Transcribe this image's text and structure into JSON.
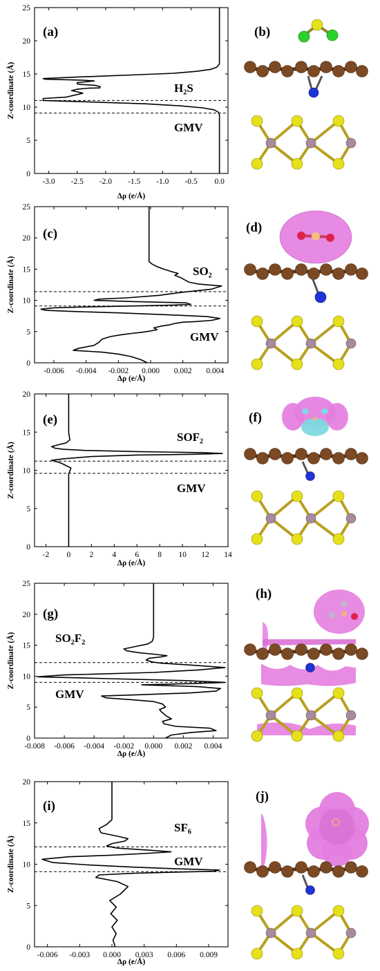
{
  "colors": {
    "curve": "#000000",
    "axis": "#000000",
    "dashed": "#000000",
    "carbon": "#7b4a25",
    "nitrogen": "#1f33d6",
    "sulfur": "#e6e01a",
    "molybdenum": "#a88a9e",
    "chlorine": "#2bd12b",
    "oxygen": "#e0224a",
    "fluorine": "#c4b2cf",
    "isosurface": "#e47ee0",
    "isosurface_neg": "#7fd9e0"
  },
  "structures": [
    {
      "letter": "(b)",
      "molecule": "H2S-like (S with two green atoms)",
      "isosurface": "none"
    },
    {
      "letter": "(d)",
      "molecule": "SO2",
      "isosurface": "ellipsoid-above"
    },
    {
      "letter": "(f)",
      "molecule": "SOF2",
      "isosurface": "lobes-with-cyan"
    },
    {
      "letter": "(h)",
      "molecule": "SO2F2",
      "isosurface": "layers"
    },
    {
      "letter": "(j)",
      "molecule": "SF6",
      "isosurface": "octahedral-blob"
    }
  ],
  "chart_data": [
    {
      "type": "line",
      "letter": "(a)",
      "annotation_molecule": "H₂S",
      "annotation_substrate": "GMV",
      "xlabel": "Δρ (e/Å)",
      "ylabel": "Z-coordinate (Å)",
      "xlim": [
        -3.25,
        0.15
      ],
      "ylim": [
        0,
        25
      ],
      "xticks": [
        "-3.0",
        "-2.5",
        "-2.0",
        "-1.5",
        "-1.0",
        "-0.5",
        "0.0"
      ],
      "xtick_values": [
        -3.0,
        -2.5,
        -2.0,
        -1.5,
        -1.0,
        -0.5,
        0.0
      ],
      "yticks": [
        0,
        5,
        10,
        15,
        20,
        25
      ],
      "dashed_lines_z": [
        9.1,
        11.0
      ],
      "series": [
        {
          "x": [
            0,
            0,
            0,
            -0.01,
            -0.03,
            -0.1,
            -0.3,
            -0.7,
            -1.3,
            -2.0,
            -2.7,
            -3.1,
            -3.1,
            -2.7,
            -2.6,
            -2.5,
            -2.4,
            -2.5,
            -2.6,
            -2.5,
            -2.3,
            -2.1,
            -2.1,
            -2.2,
            -2.4,
            -2.5,
            -2.5,
            -2.3,
            -2.2,
            -2.4,
            -2.6,
            -2.8,
            -3.05,
            -3.1,
            -2.6,
            -2.0,
            -1.4,
            -0.8,
            -0.4,
            -0.15,
            -0.05,
            0,
            0,
            0
          ],
          "y": [
            0,
            5,
            8.8,
            9.1,
            9.3,
            9.6,
            9.9,
            10.2,
            10.5,
            10.7,
            10.9,
            11.0,
            11.3,
            11.5,
            11.7,
            11.9,
            12.1,
            12.3,
            12.5,
            12.7,
            12.85,
            12.9,
            13.1,
            13.3,
            13.4,
            13.5,
            13.7,
            13.85,
            13.95,
            14.05,
            14.1,
            14.15,
            14.2,
            14.3,
            14.5,
            14.7,
            14.9,
            15.1,
            15.4,
            15.7,
            16.0,
            16.5,
            20,
            25
          ]
        }
      ]
    },
    {
      "type": "line",
      "letter": "(c)",
      "annotation_molecule": "SO₂",
      "annotation_substrate": "GMV",
      "xlabel": "Δρ (e/Å)",
      "ylabel": "Z-coordinate (Å)",
      "xlim": [
        -0.0072,
        0.0048
      ],
      "ylim": [
        0,
        25
      ],
      "xticks": [
        "-0.006",
        "-0.004",
        "-0.002",
        "0.000",
        "0.002",
        "0.004"
      ],
      "xtick_values": [
        -0.006,
        -0.004,
        -0.002,
        0.0,
        0.002,
        0.004
      ],
      "yticks": [
        0,
        5,
        10,
        15,
        20,
        25
      ],
      "dashed_lines_z": [
        9.1,
        11.4
      ],
      "series": [
        {
          "x": [
            -0.0002,
            -0.0006,
            -0.0012,
            -0.002,
            -0.003,
            -0.0042,
            -0.0048,
            -0.0045,
            -0.0035,
            -0.0032,
            -0.003,
            -0.0025,
            -0.0018,
            -0.0012,
            -0.0005,
            0.0,
            0.0004,
            0.0002,
            0.0007,
            0.0012,
            0.0015,
            0.002,
            0.0028,
            0.0038,
            0.0043,
            0.0035,
            0.001,
            -0.002,
            -0.0045,
            -0.0065,
            -0.0068,
            -0.006,
            -0.004,
            -0.001,
            0.0015,
            0.0025,
            0.0022,
            -0.001,
            -0.0035,
            -0.0032,
            -0.0015,
            0.0005,
            0.002,
            0.0038,
            0.0044,
            0.003,
            0.0024,
            0.0021,
            0.0019,
            0.0015,
            0.0017,
            0.0013,
            0.0008,
            0.0004,
            0.0001,
            -0.0001,
            -0.0001,
            -0.0001,
            -0.0001
          ],
          "y": [
            0,
            0.5,
            1.0,
            1.4,
            1.7,
            1.9,
            2.0,
            2.3,
            2.8,
            3.3,
            3.8,
            4.2,
            4.5,
            4.7,
            4.9,
            5.1,
            5.3,
            5.6,
            5.9,
            6.1,
            6.3,
            6.5,
            6.6,
            6.8,
            7.1,
            7.4,
            7.7,
            8.0,
            8.2,
            8.4,
            8.6,
            8.8,
            8.95,
            9.1,
            9.25,
            9.35,
            9.6,
            9.8,
            10.0,
            10.2,
            10.4,
            10.8,
            11.3,
            11.8,
            12.3,
            12.6,
            12.9,
            13.3,
            13.6,
            14.0,
            14.3,
            14.6,
            15.0,
            15.4,
            15.8,
            16.2,
            17.0,
            20,
            25
          ]
        }
      ]
    },
    {
      "type": "line",
      "letter": "(e)",
      "annotation_molecule": "SOF₂",
      "annotation_substrate": "GMV",
      "xlabel": "Δρ (e/Å)",
      "ylabel": "Z-coordinate (Å)",
      "xlim": [
        -3.0,
        14.0
      ],
      "ylim": [
        0,
        20
      ],
      "xticks": [
        "-2",
        "0",
        "2",
        "4",
        "6",
        "8",
        "10",
        "12",
        "14"
      ],
      "xtick_values": [
        -2,
        0,
        2,
        4,
        6,
        8,
        10,
        12,
        14
      ],
      "yticks": [
        0,
        5,
        10,
        15,
        20
      ],
      "dashed_lines_z": [
        9.6,
        11.2
      ],
      "series": [
        {
          "x": [
            0,
            0,
            0,
            0.1,
            0.2,
            -0.2,
            -0.6,
            -1.0,
            -1.5,
            -0.5,
            2.0,
            6.0,
            11.0,
            13.5,
            12.0,
            6.0,
            1.5,
            -0.5,
            -1.2,
            -1.5,
            -1.0,
            -0.2,
            0.1,
            0.05,
            0,
            0
          ],
          "y": [
            0,
            5,
            9.5,
            9.9,
            10.3,
            10.6,
            10.9,
            11.1,
            11.3,
            11.5,
            11.8,
            12.0,
            12.1,
            12.2,
            12.3,
            12.45,
            12.6,
            12.75,
            12.9,
            13.1,
            13.3,
            13.6,
            14.0,
            14.5,
            15.0,
            20
          ]
        }
      ]
    },
    {
      "type": "line",
      "letter": "(g)",
      "annotation_molecule": "SO₂F₂",
      "annotation_substrate": "GMV",
      "xlabel": "Δρ (e/Å)",
      "ylabel": "Z-coordinate (Å)",
      "xlim": [
        -0.008,
        0.005
      ],
      "ylim": [
        0,
        25
      ],
      "xticks": [
        "-0.008",
        "-0.006",
        "-0.004",
        "-0.002",
        "0.000",
        "0.002",
        "0.004"
      ],
      "xtick_values": [
        -0.008,
        -0.006,
        -0.004,
        -0.002,
        0.0,
        0.002,
        0.004
      ],
      "yticks": [
        0,
        5,
        10,
        15,
        20,
        25
      ],
      "dashed_lines_z": [
        9.0,
        12.2
      ],
      "series": [
        {
          "x": [
            0.0008,
            0.0012,
            0.0025,
            0.0042,
            0.0038,
            0.0015,
            0.0007,
            0.0006,
            0.0012,
            0.0009,
            0.0007,
            0.0005,
            0.0004,
            0.0008,
            0.0006,
            0.0,
            -0.0015,
            -0.0032,
            -0.0035,
            -0.001,
            0.0025,
            0.0042,
            0.0045,
            0.003,
            0.0005,
            -0.0008,
            0.0025,
            0.0048,
            0.002,
            -0.003,
            -0.0078,
            -0.006,
            0.0,
            0.003,
            0.0048,
            0.0025,
            0.0005,
            -0.0001,
            -0.0005,
            -0.0003,
            0.0005,
            0.0009,
            0.0002,
            -0.001,
            -0.0018,
            -0.002,
            -0.0012,
            -0.0004,
            -0.0001,
            0.0,
            0.0,
            0.0
          ],
          "y": [
            0,
            0.5,
            0.9,
            1.2,
            1.6,
            1.9,
            2.3,
            2.7,
            3.1,
            3.5,
            3.9,
            4.3,
            4.6,
            5.0,
            5.5,
            5.9,
            6.2,
            6.5,
            6.8,
            7.0,
            7.3,
            7.6,
            8.0,
            8.3,
            8.5,
            8.6,
            8.8,
            9.0,
            9.3,
            9.6,
            9.9,
            10.2,
            10.6,
            11.0,
            11.4,
            11.8,
            12.1,
            12.3,
            12.6,
            12.9,
            13.1,
            13.3,
            13.5,
            13.8,
            14.1,
            14.4,
            14.8,
            15.2,
            15.6,
            16.3,
            20,
            25
          ]
        }
      ]
    },
    {
      "type": "line",
      "letter": "(i)",
      "annotation_molecule": "SF₆",
      "annotation_substrate": "GMV",
      "xlabel": "Δρ (e/Å)",
      "ylabel": "Z-coordinate (Å)",
      "xlim": [
        -0.0072,
        0.0108
      ],
      "ylim": [
        0,
        20
      ],
      "xticks": [
        "-0.006",
        "-0.003",
        "0.000",
        "0.003",
        "0.006",
        "0.009"
      ],
      "xtick_values": [
        -0.006,
        -0.003,
        0.0,
        0.003,
        0.006,
        0.009
      ],
      "yticks": [
        0,
        5,
        10,
        15,
        20
      ],
      "dashed_lines_z": [
        9.1,
        12.1
      ],
      "series": [
        {
          "x": [
            0.0003,
            0.0001,
            0.0004,
            0.0,
            0.0005,
            -0.0001,
            0.0004,
            -0.0002,
            0.0008,
            0.0015,
            0.0005,
            -0.0015,
            -0.0012,
            0.002,
            0.006,
            0.0095,
            0.01,
            0.006,
            0.002,
            -0.002,
            -0.0055,
            -0.0065,
            -0.004,
            0.0,
            0.003,
            0.0055,
            0.0035,
            0.0005,
            -0.0005,
            0.0,
            0.0012,
            0.0015,
            0.0005,
            -0.001,
            -0.0012,
            -0.0005,
            0.0,
            0.0,
            0.0
          ],
          "y": [
            0,
            0.8,
            1.6,
            2.4,
            3.2,
            4.0,
            4.8,
            5.6,
            6.4,
            7.3,
            7.9,
            8.4,
            8.7,
            8.9,
            9.05,
            9.15,
            9.3,
            9.45,
            9.65,
            9.9,
            10.2,
            10.6,
            10.9,
            11.1,
            11.3,
            11.5,
            11.7,
            11.95,
            12.2,
            12.5,
            12.8,
            13.1,
            13.4,
            13.8,
            14.3,
            14.8,
            15.4,
            16.0,
            20
          ]
        }
      ]
    }
  ]
}
